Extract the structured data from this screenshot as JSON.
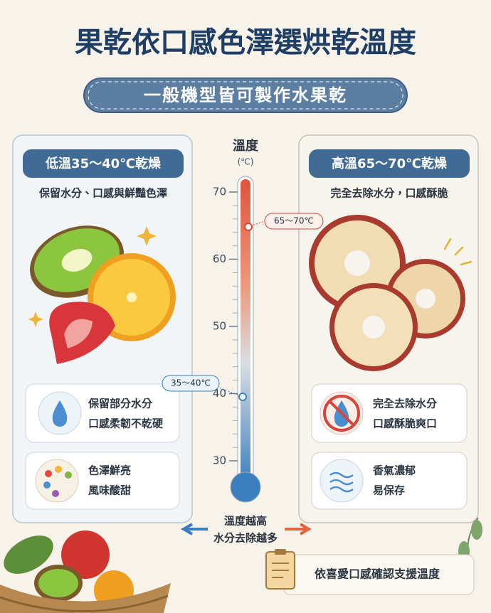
{
  "header": {
    "title": "果乾依口感色澤選烘乾溫度",
    "subtitle": "一般機型皆可製作水果乾"
  },
  "left": {
    "heading": "低溫35～40℃乾燥",
    "description": "保留水分、口感與鮮豔色澤",
    "features": [
      {
        "lines": [
          "保留部分水分",
          "口感柔韌不乾硬"
        ]
      },
      {
        "lines": [
          "色澤鮮亮",
          "風味酸甜"
        ]
      }
    ]
  },
  "right": {
    "heading": "高溫65～70℃乾燥",
    "description": "完全去除水分，口感酥脆",
    "features": [
      {
        "lines": [
          "完全去除水分",
          "口感酥脆爽口"
        ]
      },
      {
        "lines": [
          "香氣濃郁",
          "易保存"
        ]
      }
    ]
  },
  "thermometer": {
    "title": "溫度",
    "unit": "(℃)",
    "ticks": [
      "70",
      "60",
      "50",
      "40",
      "30"
    ],
    "high_marker": "65～70℃",
    "low_marker": "35～40℃"
  },
  "arrow_caption": [
    "溫度越高",
    "水分去除越多"
  ],
  "footer_note": "依喜愛口感確認支援溫度"
}
